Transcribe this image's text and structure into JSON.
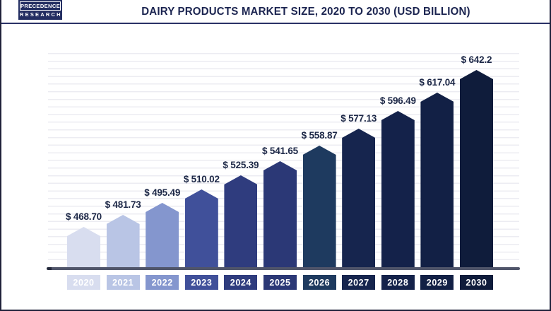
{
  "header": {
    "logo": {
      "line1": "PRECEDENCE",
      "line2": "RESEARCH"
    },
    "title": "DAIRY PRODUCTS MARKET SIZE, 2020 TO 2030 (USD BILLION)"
  },
  "chart_data": {
    "type": "bar",
    "title": "Dairy Products Market Size, 2020 to 2030 (USD Billion)",
    "unit": "USD Billion",
    "categories": [
      "2020",
      "2021",
      "2022",
      "2023",
      "2024",
      "2025",
      "2026",
      "2027",
      "2028",
      "2029",
      "2030"
    ],
    "values": [
      468.7,
      481.73,
      495.49,
      510.02,
      525.39,
      541.65,
      558.87,
      577.13,
      596.49,
      617.04,
      642.2
    ],
    "value_labels": [
      "$ 468.70",
      "$ 481.73",
      "$ 495.49",
      "$ 510.02",
      "$ 525.39",
      "$ 541.65",
      "$ 558.87",
      "$ 577.13",
      "$ 596.49",
      "$ 617.04",
      "$ 642.2"
    ],
    "bar_colors": [
      "#d8ddef",
      "#b9c5e5",
      "#8496ce",
      "#40509a",
      "#2f3c7e",
      "#2b3876",
      "#1e3a5f",
      "#16254e",
      "#14224a",
      "#122045",
      "#0f1c3b"
    ],
    "bar_shape": "pentagon-pointed-top",
    "grid": "horizontal-light",
    "legend": "none",
    "y_axis_shown": false,
    "baseline_truncated": true
  },
  "colors": {
    "title_text": "#1b2450",
    "value_label_text": "#1d2847",
    "logo_background": "#232e62",
    "header_rule": "#2a3166",
    "axis_line": "#50556a",
    "gridline": "#ececf2",
    "year_label_text": "#ffffff"
  }
}
